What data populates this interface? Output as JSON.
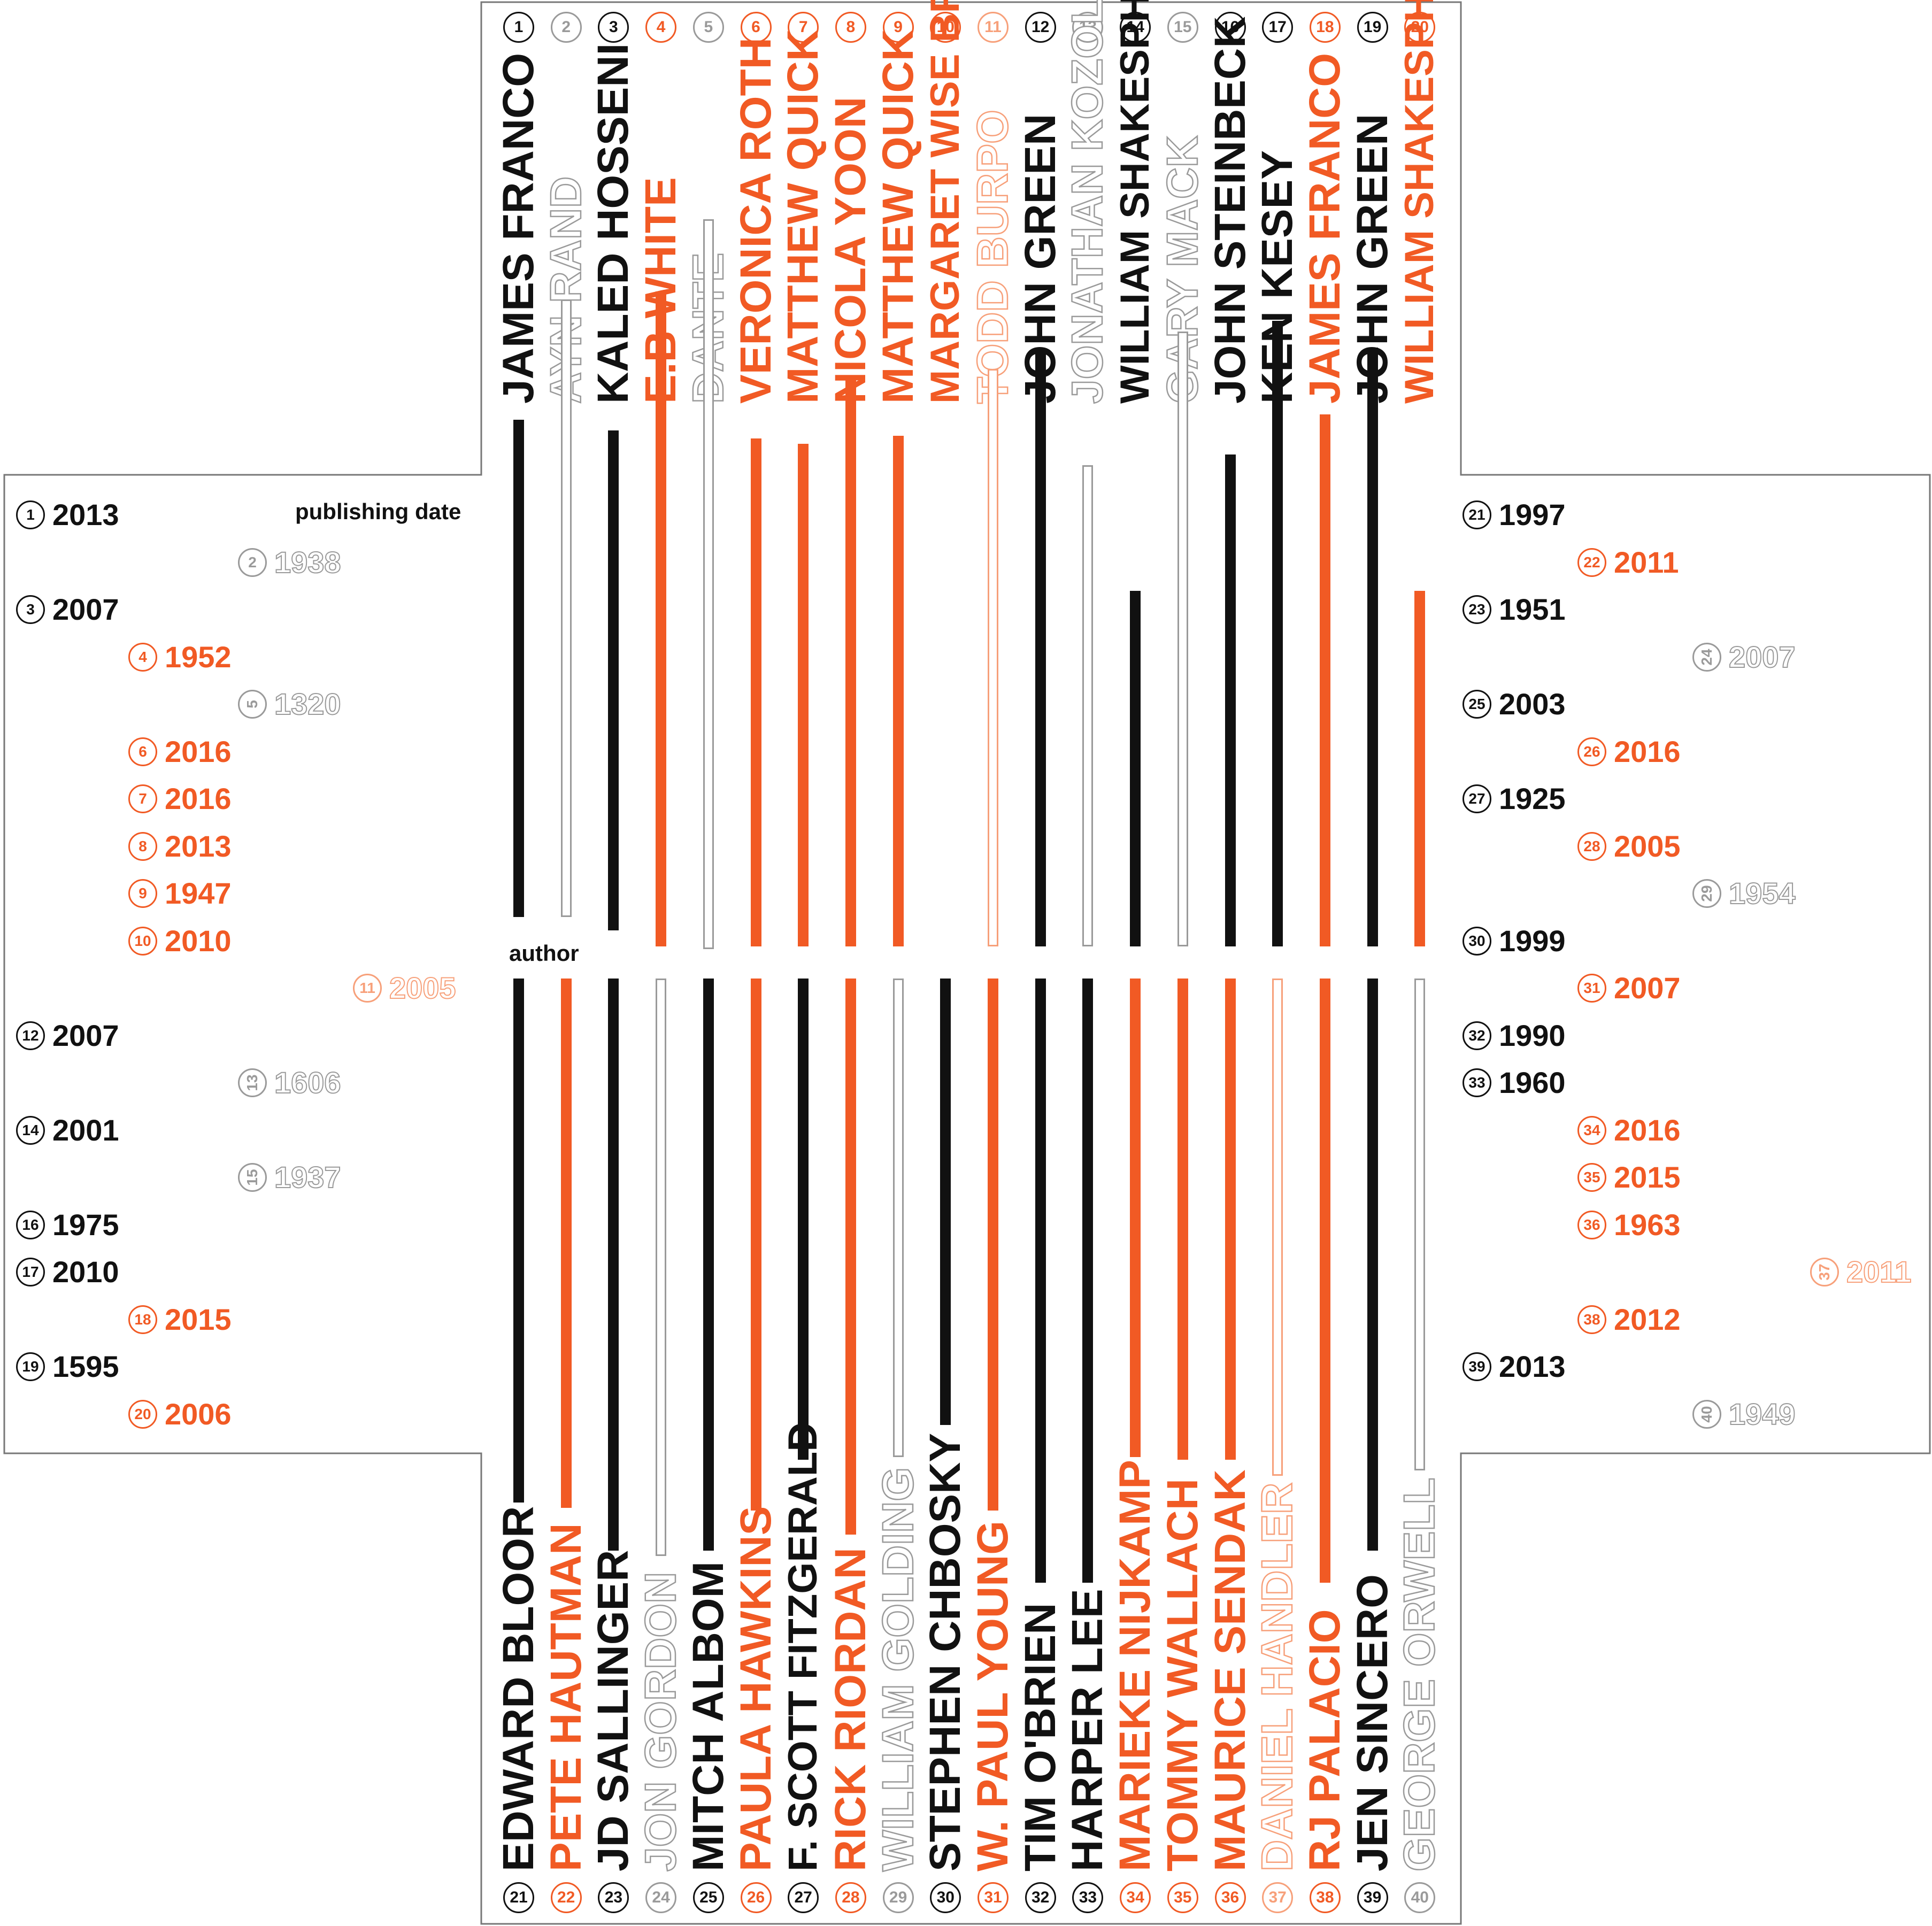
{
  "labels": {
    "publishing_date": "publishing date",
    "author": "author"
  },
  "colors": {
    "black": "#111111",
    "orange": "#f15a24",
    "gray": "#9a9a9a",
    "light_orange": "#f7a07a"
  },
  "books": [
    {
      "n": "1",
      "author": "JAMES FRANCO",
      "year": "2013",
      "style": "black"
    },
    {
      "n": "2",
      "author": "AYN RAND",
      "year": "1938",
      "style": "gray"
    },
    {
      "n": "3",
      "author": "KALED HOSSENI",
      "year": "2007",
      "style": "black"
    },
    {
      "n": "4",
      "author": "E.B WHITE",
      "year": "1952",
      "style": "orange"
    },
    {
      "n": "5",
      "author": "DANTE",
      "year": "1320",
      "style": "gray"
    },
    {
      "n": "6",
      "author": "VERONICA ROTH",
      "year": "2016",
      "style": "orange"
    },
    {
      "n": "7",
      "author": "MATTHEW QUICK",
      "year": "2016",
      "style": "orange"
    },
    {
      "n": "8",
      "author": "NICOLA YOON",
      "year": "2013",
      "style": "orange"
    },
    {
      "n": "9",
      "author": "MATTHEW QUICK",
      "year": "1947",
      "style": "orange"
    },
    {
      "n": "10",
      "author": "MARGARET WISE BROWN",
      "year": "2010",
      "style": "orange"
    },
    {
      "n": "11",
      "author": "TODD BURPO",
      "year": "2005",
      "style": "light_orange"
    },
    {
      "n": "12",
      "author": "JOHN GREEN",
      "year": "2007",
      "style": "black"
    },
    {
      "n": "13",
      "author": "JONATHAN KOZOL",
      "year": "1606",
      "style": "gray"
    },
    {
      "n": "14",
      "author": "WILLIAM SHAKESPHERE",
      "year": "2001",
      "style": "black"
    },
    {
      "n": "15",
      "author": "GARY MACK",
      "year": "1937",
      "style": "gray"
    },
    {
      "n": "16",
      "author": "JOHN STEINBECK",
      "year": "1975",
      "style": "black"
    },
    {
      "n": "17",
      "author": "KEN KESEY",
      "year": "2010",
      "style": "black"
    },
    {
      "n": "18",
      "author": "JAMES FRANCO",
      "year": "2015",
      "style": "orange"
    },
    {
      "n": "19",
      "author": "JOHN GREEN",
      "year": "1595",
      "style": "black"
    },
    {
      "n": "20",
      "author": "WILLIAM SHAKESPHERE",
      "year": "2006",
      "style": "orange"
    },
    {
      "n": "21",
      "author": "EDWARD BLOOR",
      "year": "1997",
      "style": "black"
    },
    {
      "n": "22",
      "author": "PETE HAUTMAN",
      "year": "2011",
      "style": "orange"
    },
    {
      "n": "23",
      "author": "JD SALLINGER",
      "year": "1951",
      "style": "black"
    },
    {
      "n": "24",
      "author": "JON GORDON",
      "year": "2007",
      "style": "gray"
    },
    {
      "n": "25",
      "author": "MITCH ALBOM",
      "year": "2003",
      "style": "black"
    },
    {
      "n": "26",
      "author": "PAULA HAWKINS",
      "year": "2016",
      "style": "orange"
    },
    {
      "n": "27",
      "author": "F. SCOTT FITZGERALD",
      "year": "1925",
      "style": "black"
    },
    {
      "n": "28",
      "author": "RICK RIORDAN",
      "year": "2005",
      "style": "orange"
    },
    {
      "n": "29",
      "author": "WILLIAM GOLDING",
      "year": "1954",
      "style": "gray"
    },
    {
      "n": "30",
      "author": "STEPHEN CHBOSKY",
      "year": "1999",
      "style": "black"
    },
    {
      "n": "31",
      "author": "W. PAUL YOUNG",
      "year": "2007",
      "style": "orange"
    },
    {
      "n": "32",
      "author": "TIM O'BRIEN",
      "year": "1990",
      "style": "black"
    },
    {
      "n": "33",
      "author": "HARPER LEE",
      "year": "1960",
      "style": "black"
    },
    {
      "n": "34",
      "author": "MARIEKE NIJKAMP",
      "year": "2016",
      "style": "orange"
    },
    {
      "n": "35",
      "author": "TOMMY WALLACH",
      "year": "2015",
      "style": "orange"
    },
    {
      "n": "36",
      "author": "MAURICE SENDAK",
      "year": "1963",
      "style": "orange"
    },
    {
      "n": "37",
      "author": "DANIEL HANDLER",
      "year": "2011",
      "style": "light_orange"
    },
    {
      "n": "38",
      "author": "RJ PALACIO",
      "year": "2012",
      "style": "orange"
    },
    {
      "n": "39",
      "author": "JEN SINCERO",
      "year": "2013",
      "style": "black"
    },
    {
      "n": "40",
      "author": "GEORGE ORWELL",
      "year": "1949",
      "style": "gray"
    }
  ]
}
